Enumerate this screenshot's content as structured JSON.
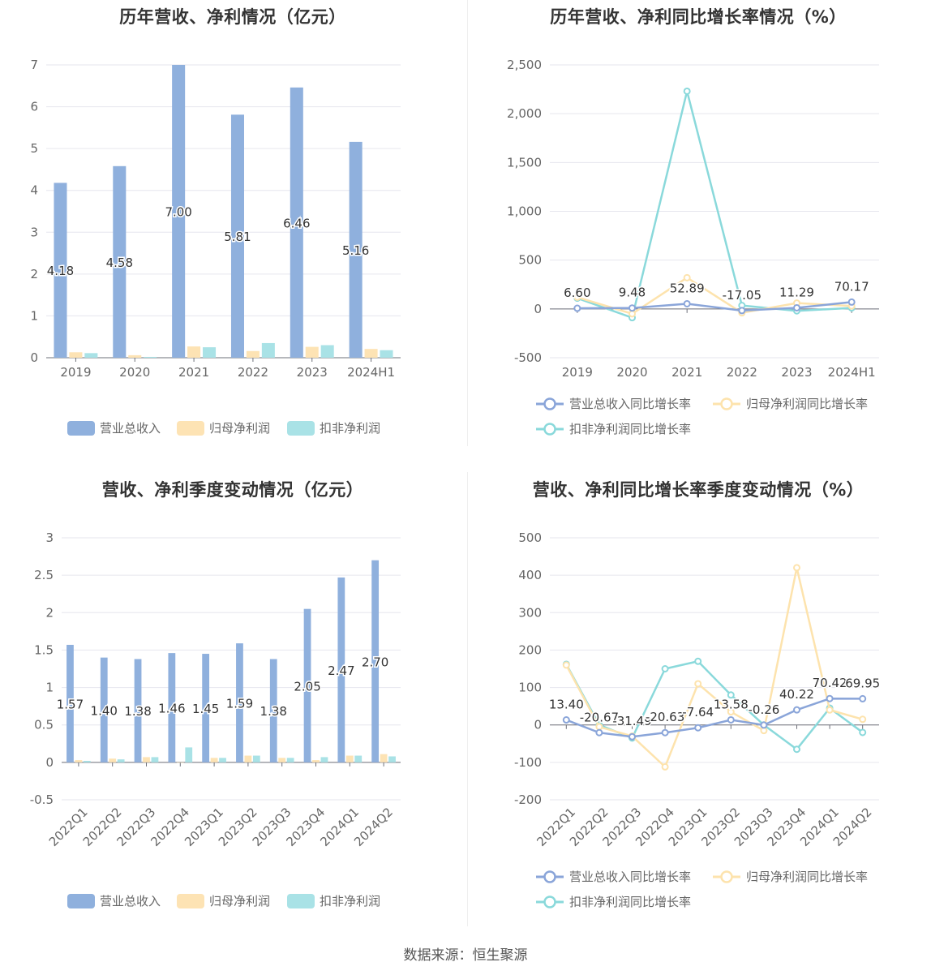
{
  "source": "数据来源：恒生聚源",
  "chart_data": [
    {
      "id": "annual-amount",
      "type": "bar",
      "title": "历年营收、净利情况（亿元）",
      "categories": [
        "2019",
        "2020",
        "2021",
        "2022",
        "2023",
        "2024H1"
      ],
      "ylim": [
        0,
        7
      ],
      "yticks": [
        0,
        1,
        2,
        3,
        4,
        5,
        6,
        7
      ],
      "grid": true,
      "legend_position": "bottom",
      "series": [
        {
          "name": "营业总收入",
          "color": "#8fb0dd",
          "values": [
            4.18,
            4.58,
            7.0,
            5.81,
            6.46,
            5.16
          ],
          "labels": [
            "4.18",
            "4.58",
            "7.00",
            "5.81",
            "6.46",
            "5.16"
          ]
        },
        {
          "name": "归母净利润",
          "color": "#fde3b4",
          "values": [
            0.13,
            0.06,
            0.27,
            0.16,
            0.26,
            0.21
          ]
        },
        {
          "name": "扣非净利润",
          "color": "#a9e2e6",
          "values": [
            0.11,
            0.02,
            0.25,
            0.35,
            0.3,
            0.18
          ]
        }
      ]
    },
    {
      "id": "annual-growth",
      "type": "line",
      "title": "历年营收、净利同比增长率情况（%）",
      "categories": [
        "2019",
        "2020",
        "2021",
        "2022",
        "2023",
        "2024H1"
      ],
      "ylim": [
        -500,
        2500
      ],
      "yticks": [
        -500,
        0,
        500,
        1000,
        1500,
        2000,
        2500
      ],
      "ytick_labels": [
        "-500",
        "0",
        "500",
        "1,000",
        "1,500",
        "2,000",
        "2,500"
      ],
      "grid": true,
      "legend_position": "bottom",
      "series": [
        {
          "name": "营业总收入同比增长率",
          "color": "#8aa5d9",
          "values": [
            6.6,
            9.48,
            52.89,
            -17.05,
            11.29,
            70.17
          ],
          "labels": [
            "6.60",
            "9.48",
            "52.89",
            "-17.05",
            "11.29",
            "70.17"
          ]
        },
        {
          "name": "归母净利润同比增长率",
          "color": "#fde3ad",
          "values": [
            120,
            -50,
            320,
            -40,
            60,
            30
          ]
        },
        {
          "name": "扣非净利润同比增长率",
          "color": "#8ad9db",
          "values": [
            110,
            -90,
            2230,
            35,
            -20,
            10
          ]
        }
      ]
    },
    {
      "id": "quarterly-amount",
      "type": "bar",
      "title": "营收、净利季度变动情况（亿元）",
      "categories": [
        "2022Q1",
        "2022Q2",
        "2022Q3",
        "2022Q4",
        "2023Q1",
        "2023Q2",
        "2023Q3",
        "2023Q4",
        "2024Q1",
        "2024Q2"
      ],
      "ylim": [
        -0.5,
        3
      ],
      "yticks": [
        -0.5,
        0,
        0.5,
        1,
        1.5,
        2,
        2.5,
        3
      ],
      "ytick_labels": [
        "-0.5",
        "0",
        "0.5",
        "1",
        "1.5",
        "2",
        "2.5",
        "3"
      ],
      "grid": true,
      "legend_position": "bottom",
      "series": [
        {
          "name": "营业总收入",
          "color": "#8fb0dd",
          "values": [
            1.57,
            1.4,
            1.38,
            1.46,
            1.45,
            1.59,
            1.38,
            2.05,
            2.47,
            2.7
          ],
          "labels": [
            "1.57",
            "1.40",
            "1.38",
            "1.46",
            "1.45",
            "1.59",
            "1.38",
            "2.05",
            "2.47",
            "2.70"
          ]
        },
        {
          "name": "归母净利润",
          "color": "#fde3b4",
          "values": [
            0.03,
            0.05,
            0.07,
            0.0,
            0.06,
            0.09,
            0.06,
            0.03,
            0.09,
            0.11
          ]
        },
        {
          "name": "扣非净利润",
          "color": "#a9e2e6",
          "values": [
            0.02,
            0.04,
            0.07,
            0.2,
            0.06,
            0.09,
            0.06,
            0.07,
            0.09,
            0.08
          ]
        }
      ]
    },
    {
      "id": "quarterly-growth",
      "type": "line",
      "title": "营收、净利同比增长率季度变动情况（%）",
      "categories": [
        "2022Q1",
        "2022Q2",
        "2022Q3",
        "2022Q4",
        "2023Q1",
        "2023Q2",
        "2023Q3",
        "2023Q4",
        "2024Q1",
        "2024Q2"
      ],
      "ylim": [
        -200,
        500
      ],
      "yticks": [
        -200,
        -100,
        0,
        100,
        200,
        300,
        400,
        500
      ],
      "ytick_labels": [
        "-200",
        "-100",
        "0",
        "100",
        "200",
        "300",
        "400",
        "500"
      ],
      "grid": true,
      "legend_position": "bottom",
      "series": [
        {
          "name": "营业总收入同比增长率",
          "color": "#8aa5d9",
          "values": [
            13.4,
            -20.67,
            -31.49,
            -20.63,
            -7.64,
            13.58,
            -0.26,
            40.22,
            70.42,
            69.95
          ],
          "labels": [
            "13.40",
            "-20.67",
            "-31.49",
            "-20.63",
            "-7.64",
            "13.58",
            "-0.26",
            "40.22",
            "70.42",
            "69.95"
          ]
        },
        {
          "name": "归母净利润同比增长率",
          "color": "#fde3ad",
          "values": [
            160,
            -5,
            -30,
            -112,
            110,
            35,
            -15,
            420,
            40,
            15
          ]
        },
        {
          "name": "扣非净利润同比增长率",
          "color": "#8ad9db",
          "values": [
            162,
            0,
            -35,
            150,
            170,
            80,
            0,
            -65,
            45,
            -20
          ]
        }
      ]
    }
  ]
}
